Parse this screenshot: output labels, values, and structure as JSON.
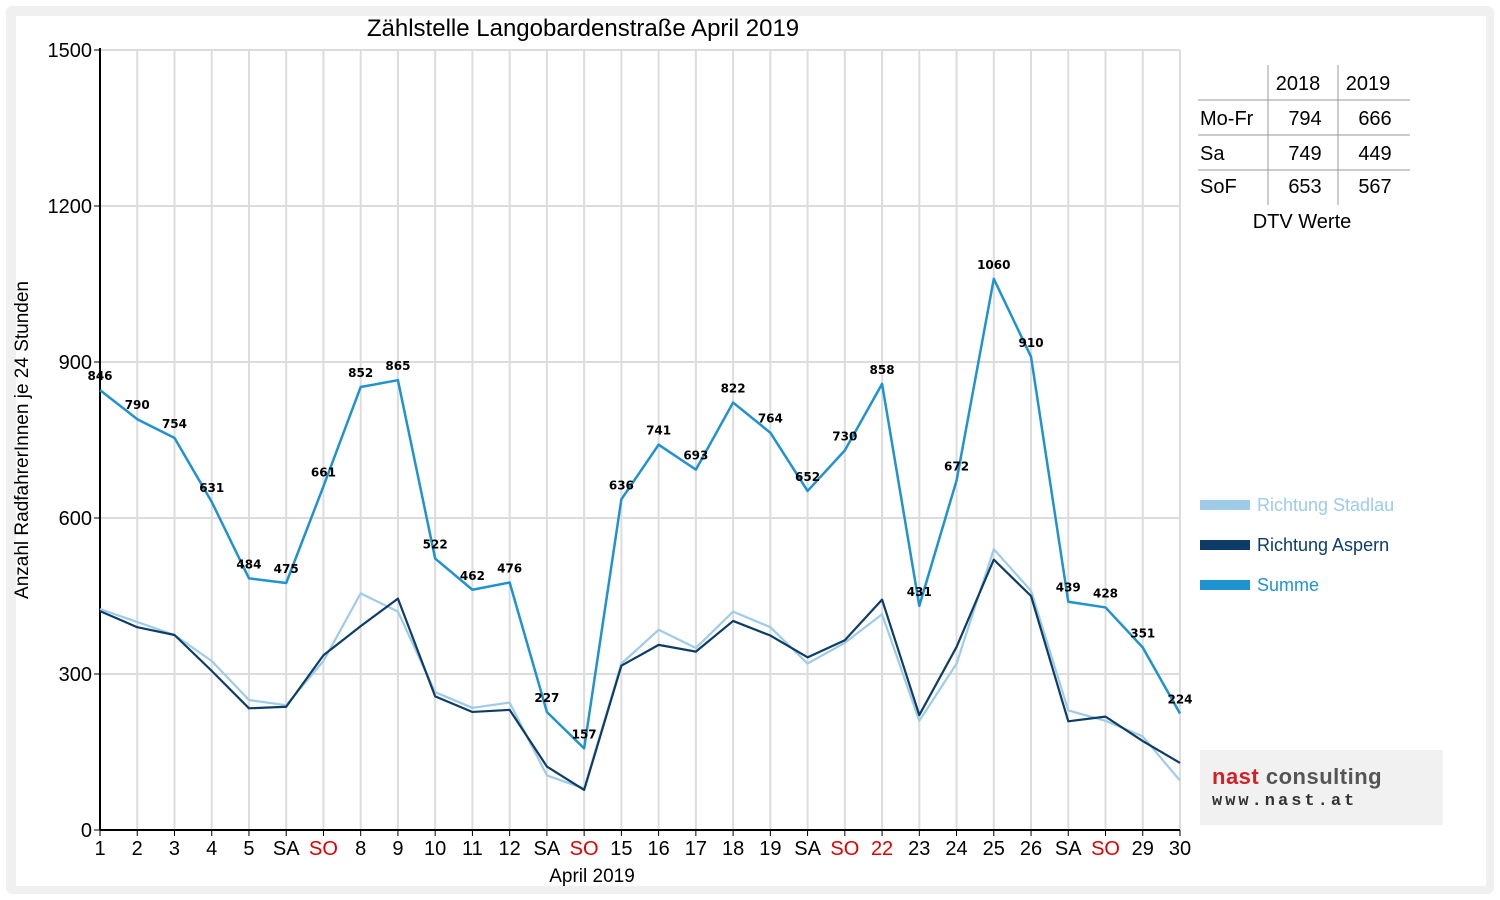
{
  "chart_data": {
    "type": "line",
    "title": "Zählstelle Langobardenstraße April 2019",
    "xlabel": "April 2019",
    "ylabel": "Anzahl RadfahrerInnen je 24 Stunden",
    "ylim": [
      0,
      1500
    ],
    "yticks": [
      0,
      300,
      600,
      900,
      1200,
      1500
    ],
    "grid": true,
    "legend_position": "right",
    "categories": [
      "1",
      "2",
      "3",
      "4",
      "5",
      "SA",
      "SO",
      "8",
      "9",
      "10",
      "11",
      "12",
      "SA",
      "SO",
      "15",
      "16",
      "17",
      "18",
      "19",
      "SA",
      "SO",
      "22",
      "23",
      "24",
      "25",
      "26",
      "SA",
      "SO",
      "29",
      "30"
    ],
    "red_categories": [
      6,
      13,
      20,
      21,
      27
    ],
    "series": [
      {
        "name": "Richtung Stadlau",
        "color": "#9dcbe8",
        "values": [
          425,
          400,
          375,
          325,
          250,
          240,
          325,
          455,
          420,
          265,
          235,
          245,
          105,
          80,
          320,
          385,
          350,
          420,
          390,
          320,
          360,
          415,
          210,
          320,
          540,
          460,
          230,
          210,
          180,
          95
        ]
      },
      {
        "name": "Richtung Aspern",
        "color": "#0d3c66",
        "values": [
          421,
          390,
          375,
          306,
          234,
          237,
          336,
          392,
          445,
          257,
          227,
          231,
          122,
          77,
          316,
          356,
          343,
          402,
          374,
          332,
          365,
          443,
          221,
          352,
          520,
          450,
          209,
          218,
          171,
          129
        ]
      },
      {
        "name": "Summe",
        "color": "#1f92d0",
        "values": [
          846,
          790,
          754,
          631,
          484,
          475,
          661,
          852,
          865,
          522,
          462,
          476,
          227,
          157,
          636,
          741,
          693,
          822,
          764,
          652,
          730,
          858,
          431,
          672,
          1060,
          910,
          439,
          428,
          351,
          224
        ]
      }
    ]
  },
  "dtv_table": {
    "headers": [
      "",
      "2018",
      "2019"
    ],
    "rows": [
      {
        "label": "Mo-Fr",
        "v2018": "794",
        "v2019": "666"
      },
      {
        "label": "Sa",
        "v2018": "749",
        "v2019": "449"
      },
      {
        "label": "SoF",
        "v2018": "653",
        "v2019": "567"
      }
    ],
    "caption": "DTV Werte"
  },
  "logo": {
    "brand_a": "nast",
    "brand_b": "consulting",
    "url": "www.nast.at"
  }
}
